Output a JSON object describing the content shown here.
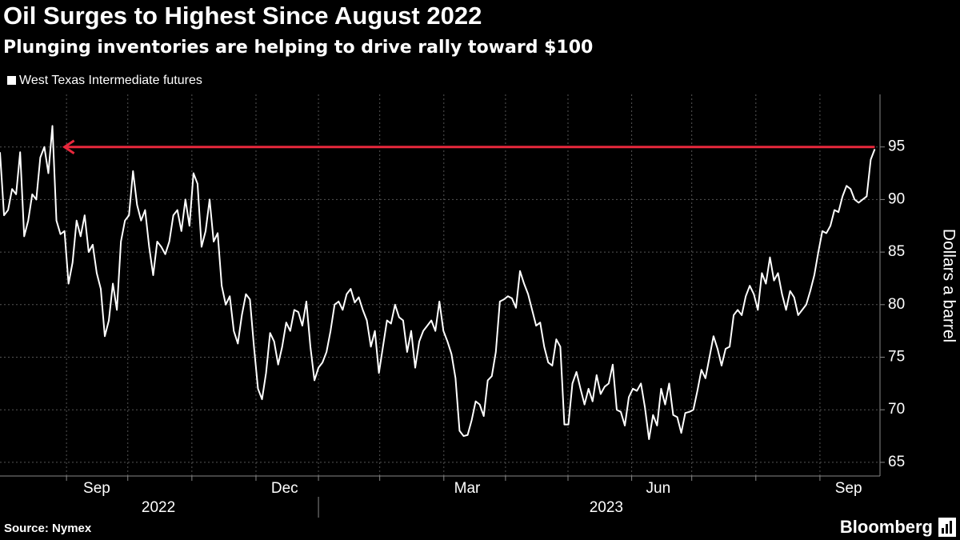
{
  "chart_data": {
    "type": "line",
    "title": "Oil Surges to Highest Since August 2022",
    "subtitle": "Plunging inventories are helping to drive rally toward $100",
    "y_axis_label": "Dollars a barrel",
    "source": "Source: Nymex",
    "brand": "Bloomberg",
    "series": [
      {
        "name": "West Texas Intermediate futures",
        "color": "#ffffff",
        "values": [
          94.5,
          88.5,
          89,
          91,
          90.5,
          94.5,
          86.5,
          88,
          90.5,
          90,
          94,
          95,
          92.5,
          97,
          88,
          86.7,
          87,
          82,
          84,
          88,
          86.5,
          88.5,
          85,
          85.7,
          83,
          81.5,
          77,
          78.5,
          82,
          79.5,
          86,
          88,
          88.5,
          92.7,
          89.5,
          88,
          89,
          85.5,
          82.8,
          86,
          85.5,
          84.8,
          86,
          88.5,
          89,
          87,
          90,
          87.5,
          92.5,
          91.5,
          85.5,
          87,
          90,
          86,
          86.8,
          81.8,
          80,
          80.8,
          77.5,
          76.3,
          79,
          81,
          80.5,
          76,
          72,
          71,
          73.5,
          77.3,
          76.5,
          74.3,
          76,
          78.3,
          77.5,
          79.5,
          79.3,
          78,
          80.3,
          76,
          72.8,
          74,
          74.5,
          75.5,
          77.5,
          80,
          80.3,
          79.5,
          81,
          81.5,
          80.2,
          80.7,
          79.5,
          78.5,
          76,
          77.5,
          73.5,
          76,
          78.5,
          78.2,
          80,
          78.8,
          78.5,
          75.5,
          77.5,
          74,
          76.5,
          77.5,
          78,
          78.5,
          77.5,
          80.3,
          77.5,
          76.5,
          75.3,
          73,
          68,
          67.5,
          67.6,
          69,
          70.8,
          70.5,
          69.4,
          72.8,
          73.2,
          75.5,
          80.3,
          80.5,
          80.8,
          80.6,
          79.7,
          83.2,
          82,
          81,
          79.5,
          78,
          78.3,
          76,
          74.5,
          74.2,
          76.7,
          76,
          68.6,
          68.6,
          72.5,
          73.6,
          72,
          70.5,
          72,
          70.8,
          73.3,
          71.5,
          72.2,
          72.5,
          74.3,
          70,
          69.8,
          68.5,
          71.2,
          72,
          71.8,
          72.5,
          70.2,
          67.2,
          69.5,
          68.5,
          72,
          70.5,
          72.5,
          69.5,
          69.3,
          67.8,
          69.7,
          69.8,
          70,
          71.8,
          73.8,
          73,
          75,
          77,
          75.8,
          74.2,
          75.8,
          76,
          79,
          79.5,
          79,
          80.8,
          81.8,
          81,
          79.5,
          83,
          82,
          84.5,
          82.3,
          83,
          81,
          79.5,
          81.3,
          80.7,
          79,
          79.5,
          80,
          81.3,
          82.8,
          85,
          87,
          86.8,
          87.5,
          89,
          88.8,
          90.3,
          91.3,
          91,
          90,
          89.7,
          90,
          90.3,
          93.8,
          94.8
        ]
      }
    ],
    "reference_line": {
      "value": 95,
      "color": "#e8283c",
      "from_x": 16
    },
    "xlim": [
      0,
      218.3
    ],
    "xticks": [
      {
        "value": 24,
        "label": "Sep"
      },
      {
        "value": 70.6,
        "label": "Dec"
      },
      {
        "value": 115.9,
        "label": "Mar"
      },
      {
        "value": 163.3,
        "label": "Jun"
      },
      {
        "value": 210.5,
        "label": "Sep"
      }
    ],
    "year_ticks": [
      {
        "value": 39.3,
        "label": "2022"
      },
      {
        "value": 150.4,
        "label": "2023"
      }
    ],
    "year_boundary": 79,
    "xgrid": [
      16.5,
      31.7,
      47.6,
      63.5,
      79,
      94.2,
      110.1,
      125.4,
      140.9,
      156.7,
      171.6,
      187.5,
      203.4
    ],
    "ylim": [
      63.7,
      100
    ],
    "yticks": [
      65,
      70,
      75,
      80,
      85,
      90,
      95
    ],
    "grid": true
  }
}
